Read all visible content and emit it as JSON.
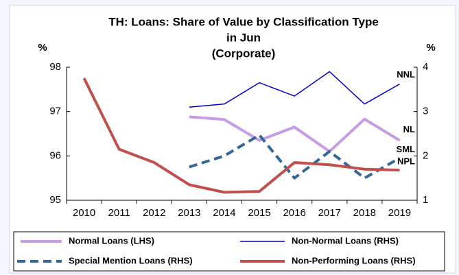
{
  "chart_data": {
    "type": "line",
    "title": [
      "TH: Loans: Share of Value by Classification Type",
      "in Jun",
      "(Corporate)"
    ],
    "ylabel": "%",
    "y2label": "%",
    "categories": [
      "2010",
      "2011",
      "2012",
      "2013",
      "2014",
      "2015",
      "2016",
      "2017",
      "2018",
      "2019"
    ],
    "ylim": [
      95,
      98
    ],
    "yticks": [
      95,
      96,
      97,
      98
    ],
    "y2lim": [
      1,
      4
    ],
    "y2ticks": [
      1,
      2,
      3,
      4
    ],
    "series": [
      {
        "name": "Normal Loans (LHS)",
        "label": "NL",
        "color": "#c79be6",
        "dash": false,
        "axis": "y",
        "values": [
          null,
          null,
          null,
          96.88,
          96.82,
          96.35,
          96.65,
          96.1,
          96.83,
          96.35
        ]
      },
      {
        "name": "Non-Normal Loans (RHS)",
        "label": "NNL",
        "color": "#0000cc",
        "dash": false,
        "axis": "y2",
        "values": [
          null,
          null,
          null,
          3.1,
          3.17,
          3.65,
          3.35,
          3.9,
          3.17,
          3.62
        ]
      },
      {
        "name": "Special Mention Loans (RHS)",
        "label": "SML",
        "color": "#336699",
        "dash": true,
        "axis": "y2",
        "values": [
          null,
          null,
          null,
          1.75,
          2.0,
          2.47,
          1.5,
          2.1,
          1.5,
          1.95
        ]
      },
      {
        "name": "Non-Performing Loans (RHS)",
        "label": "NPL",
        "color": "#c0504d",
        "dash": false,
        "axis": "y2",
        "values": [
          3.75,
          2.15,
          1.85,
          1.35,
          1.18,
          1.2,
          1.85,
          1.8,
          1.7,
          1.68
        ]
      }
    ]
  }
}
